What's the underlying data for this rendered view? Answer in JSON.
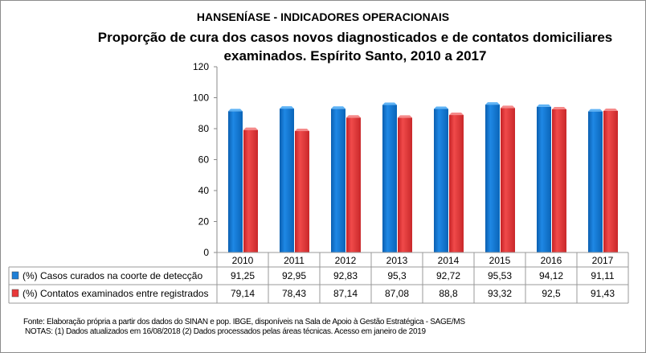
{
  "titles": {
    "header": "HANSENÍASE - INDICADORES OPERACIONAIS",
    "line1": "Proporção de cura dos casos novos diagnosticados e de contatos domiciliares",
    "line2": "examinados. Espírito Santo, 2010 a 2017"
  },
  "chart_data": {
    "type": "bar",
    "title": "Proporção de cura dos casos novos diagnosticados e de contatos domiciliares examinados. Espírito Santo, 2010 a 2017",
    "categories": [
      "2010",
      "2011",
      "2012",
      "2013",
      "2014",
      "2015",
      "2016",
      "2017"
    ],
    "series": [
      {
        "name": "(%) Casos curados na coorte de detecção",
        "color": "#1f7fd6",
        "values": [
          91.25,
          92.95,
          92.83,
          95.3,
          92.72,
          95.53,
          94.12,
          91.11
        ],
        "labels": [
          "91,25",
          "92,95",
          "92,83",
          "95,3",
          "92,72",
          "95,53",
          "94,12",
          "91,11"
        ]
      },
      {
        "name": "(%) Contatos examinados entre registrados",
        "color": "#e8393a",
        "values": [
          79.14,
          78.43,
          87.14,
          87.08,
          88.8,
          93.32,
          92.5,
          91.43
        ],
        "labels": [
          "79,14",
          "78,43",
          "87,14",
          "87,08",
          "88,8",
          "93,32",
          "92,5",
          "91,43"
        ]
      }
    ],
    "ylim": [
      0,
      120
    ],
    "yticks": [
      "0",
      "20",
      "40",
      "60",
      "80",
      "100",
      "120"
    ],
    "grid": false,
    "legend": "data-table"
  },
  "footer": {
    "source": "Fonte:  Elaboração própria a partir dos dados do  SINAN  e  pop. IBGE, disponíveis na Sala de Apoio à Gestão Estratégica - SAGE/MS",
    "notes": "NOTAS:  (1) Dados atualizados em 16/08/2018 (2) Dados processados pelas áreas técnicas. Acesso em janeiro de 2019"
  }
}
